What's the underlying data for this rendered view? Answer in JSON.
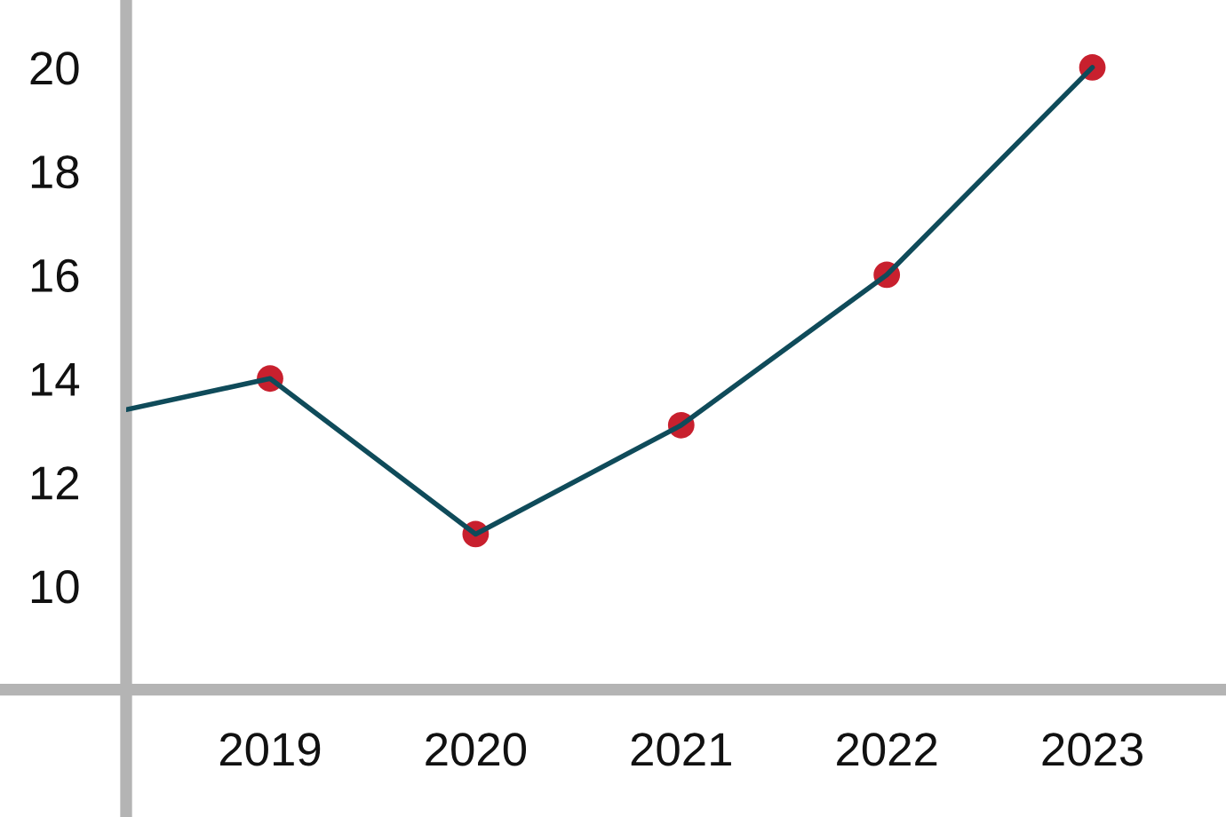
{
  "chart_data": {
    "type": "line",
    "x": [
      2018.3,
      2019,
      2020,
      2021,
      2022,
      2023
    ],
    "values": [
      13.4,
      14,
      11,
      13.1,
      16,
      20
    ],
    "color": "#0f4b5a",
    "colors": [
      null,
      "#c8202e",
      "#c8202e",
      "#c8202e",
      "#c8202e",
      "#c8202e"
    ],
    "marker": "circle",
    "xlim": [
      2018.3,
      2023.65
    ],
    "xticks": [
      2019,
      2020,
      2021,
      2022,
      2023
    ],
    "ylim": [
      8,
      21.3
    ],
    "yticks": [
      10,
      12,
      14,
      16,
      18,
      20
    ]
  }
}
